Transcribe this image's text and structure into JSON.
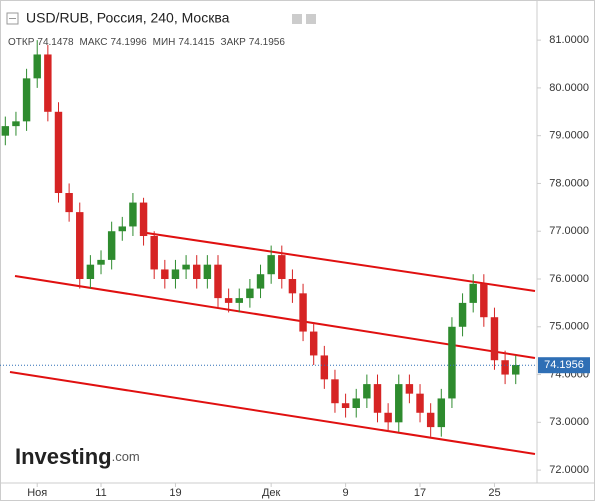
{
  "header": {
    "title": "USD/RUB, Россия, 240, Москва",
    "ohlc": [
      "ОТКР",
      "74.1478",
      "МАКС",
      "74.1996",
      "МИН",
      "74.1415",
      "ЗАКР",
      "74.1956"
    ]
  },
  "logo": {
    "name": "Investing",
    "suffix": ".com"
  },
  "chart_data": {
    "type": "candlestick",
    "categories": [
      null,
      null,
      null,
      "Ноя",
      null,
      null,
      null,
      null,
      null,
      "11",
      null,
      null,
      null,
      null,
      null,
      null,
      "19",
      null,
      null,
      null,
      null,
      null,
      null,
      null,
      null,
      "Дек",
      null,
      null,
      null,
      null,
      null,
      null,
      "9",
      null,
      null,
      null,
      null,
      null,
      null,
      "17",
      null,
      null,
      null,
      null,
      null,
      null,
      "25",
      null,
      null
    ],
    "open": [
      79.0,
      79.2,
      79.3,
      80.2,
      80.7,
      79.5,
      77.8,
      77.4,
      76.0,
      76.3,
      76.4,
      77.0,
      77.1,
      77.6,
      76.9,
      76.2,
      76.0,
      76.2,
      76.3,
      76.0,
      76.3,
      75.6,
      75.5,
      75.6,
      75.8,
      76.1,
      76.5,
      76.0,
      75.7,
      74.9,
      74.4,
      73.9,
      73.4,
      73.3,
      73.5,
      73.8,
      73.2,
      73.0,
      73.8,
      73.6,
      73.2,
      72.9,
      73.5,
      75.0,
      75.5,
      75.9,
      75.2,
      74.3,
      74.0
    ],
    "high": [
      79.4,
      79.5,
      80.4,
      81.0,
      80.9,
      79.7,
      78.0,
      77.6,
      76.5,
      76.6,
      77.2,
      77.3,
      77.8,
      77.7,
      77.0,
      76.4,
      76.4,
      76.5,
      76.5,
      76.5,
      76.5,
      75.8,
      75.8,
      76.0,
      76.3,
      76.7,
      76.7,
      76.2,
      75.9,
      75.1,
      74.6,
      74.1,
      73.6,
      73.7,
      74.0,
      74.0,
      73.4,
      74.0,
      74.0,
      73.8,
      73.4,
      73.7,
      75.2,
      75.7,
      76.1,
      76.1,
      75.4,
      74.5,
      74.4
    ],
    "low": [
      78.8,
      79.0,
      79.1,
      80.0,
      79.3,
      77.6,
      77.2,
      75.8,
      75.8,
      76.1,
      76.2,
      76.8,
      76.9,
      76.7,
      76.0,
      75.8,
      75.8,
      76.0,
      75.8,
      75.8,
      75.4,
      75.3,
      75.3,
      75.4,
      75.6,
      75.9,
      75.8,
      75.5,
      74.7,
      74.2,
      73.7,
      73.2,
      73.1,
      73.1,
      73.3,
      73.0,
      72.8,
      72.8,
      73.4,
      73.0,
      72.7,
      72.7,
      73.3,
      74.8,
      75.3,
      75.0,
      74.1,
      73.8,
      73.8
    ],
    "close": [
      79.2,
      79.3,
      80.2,
      80.7,
      79.5,
      77.8,
      77.4,
      76.0,
      76.3,
      76.4,
      77.0,
      77.1,
      77.6,
      76.9,
      76.2,
      76.0,
      76.2,
      76.3,
      76.0,
      76.3,
      75.6,
      75.5,
      75.6,
      75.8,
      76.1,
      76.5,
      76.0,
      75.7,
      74.9,
      74.4,
      73.9,
      73.4,
      73.3,
      73.5,
      73.8,
      73.2,
      73.0,
      73.8,
      73.6,
      73.2,
      72.9,
      73.5,
      75.0,
      75.5,
      75.9,
      75.2,
      74.3,
      74.0,
      74.2
    ],
    "up_color": "#2e8b2e",
    "down_color": "#d62424",
    "last_price": 74.1956,
    "last_price_color": "#2f6fb5",
    "ylim": [
      71.73,
      81.84
    ],
    "yticks": [
      {
        "value": 72,
        "label": "72.0000"
      },
      {
        "value": 73,
        "label": "73.0000"
      },
      {
        "value": 74,
        "label": "74.0000"
      },
      {
        "value": 75,
        "label": "75.0000"
      },
      {
        "value": 76,
        "label": "76.0000"
      },
      {
        "value": 77,
        "label": "77.0000"
      },
      {
        "value": 78,
        "label": "78.0000"
      },
      {
        "value": 79,
        "label": "79.0000"
      },
      {
        "value": 80,
        "label": "80.0000"
      },
      {
        "value": 81,
        "label": "81.0000"
      }
    ],
    "grid": false
  }
}
